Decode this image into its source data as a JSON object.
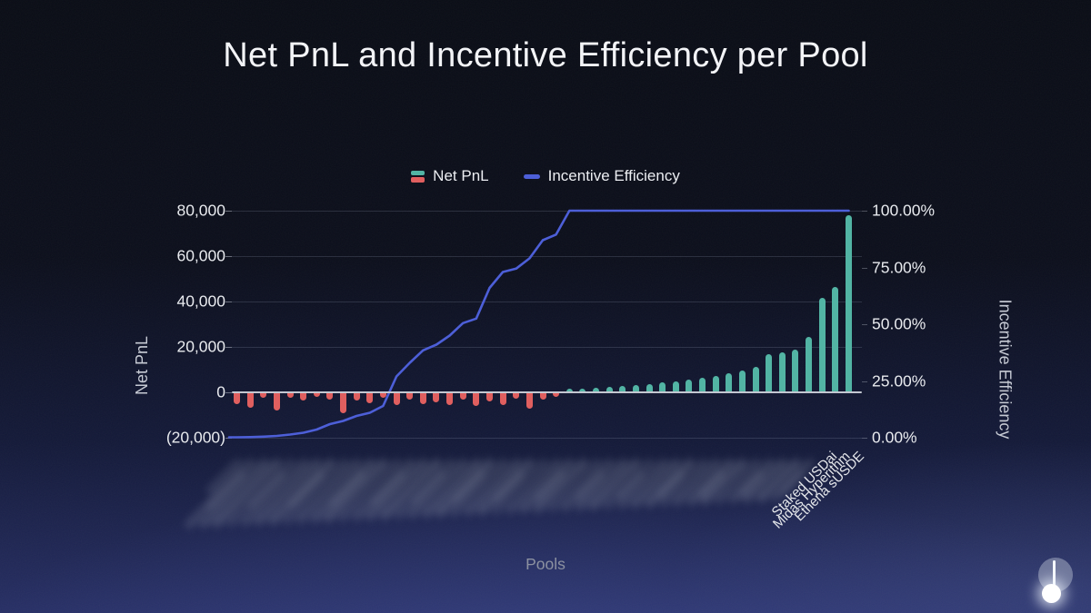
{
  "title": "Net PnL and Incentive Efficiency per Pool",
  "legend": {
    "net_pnl": "Net PnL",
    "incentive_efficiency": "Incentive Efficiency"
  },
  "axes": {
    "left": {
      "title": "Net PnL",
      "ticks": [
        {
          "value": 80000,
          "label": "80,000"
        },
        {
          "value": 60000,
          "label": "60,000"
        },
        {
          "value": 40000,
          "label": "40,000"
        },
        {
          "value": 20000,
          "label": "20,000"
        },
        {
          "value": 0,
          "label": "0"
        },
        {
          "value": -20000,
          "label": "(20,000)"
        }
      ]
    },
    "right": {
      "title": "Incentive Efficiency",
      "ticks": [
        {
          "value": 100,
          "label": "100.00%"
        },
        {
          "value": 75,
          "label": "75.00%"
        },
        {
          "value": 50,
          "label": "50.00%"
        },
        {
          "value": 25,
          "label": "25.00%"
        },
        {
          "value": 0,
          "label": "0.00%"
        }
      ]
    },
    "x": {
      "title": "Pools"
    }
  },
  "colors": {
    "bar_positive": "#52b4a4",
    "bar_negative": "#e05f5f",
    "efficiency_line": "#4d5fd8",
    "zero_line": "#c3c7d1",
    "background_top": "#090c15",
    "background_bottom": "#262e64"
  },
  "chart_data": {
    "type": "bar",
    "subtype": "combo-bar-line-dual-axis",
    "title": "Net PnL and Incentive Efficiency per Pool",
    "xlabel": "Pools",
    "ylabel_left": "Net PnL",
    "ylabel_right": "Incentive Efficiency",
    "left_ylim": [
      -20000,
      80000
    ],
    "right_ylim_percent": [
      0,
      100
    ],
    "grid": true,
    "legend_position": "top-center",
    "x_labels_note": "all category labels blurred/illegible except the final three",
    "categories": [
      "",
      "",
      "",
      "",
      "",
      "",
      "",
      "",
      "",
      "",
      "",
      "",
      "",
      "",
      "",
      "",
      "",
      "",
      "",
      "",
      "",
      "",
      "",
      "",
      "",
      "",
      "",
      "",
      "",
      "",
      "",
      "",
      "",
      "",
      "",
      "",
      "",
      "",
      "",
      "",
      "",
      "",
      "",
      "",
      "Staked USDai",
      "Midas Hyperithm",
      "Ethena sUSDE"
    ],
    "series": [
      {
        "name": "Net PnL",
        "type": "bar",
        "yaxis": "left",
        "values": [
          -5000,
          -6600,
          -2400,
          -8100,
          -2400,
          -3400,
          -2000,
          -3200,
          -9200,
          -3600,
          -4600,
          -2200,
          -5400,
          -3000,
          -5000,
          -4200,
          -5600,
          -3200,
          -6000,
          -4000,
          -5600,
          -2600,
          -7200,
          -3000,
          -1800,
          1500,
          1800,
          2100,
          2400,
          2800,
          3200,
          3700,
          4300,
          4900,
          5600,
          6400,
          7300,
          8400,
          9700,
          11200,
          16800,
          17600,
          18900,
          24500,
          41800,
          46500,
          78200
        ]
      },
      {
        "name": "Incentive Efficiency",
        "type": "line",
        "yaxis": "right",
        "values_percent": [
          0.2,
          0.3,
          0.5,
          0.8,
          1.4,
          2.2,
          3.6,
          6,
          7.4,
          9.6,
          11,
          14,
          27,
          33,
          38.5,
          41,
          45,
          50.5,
          52.5,
          66,
          73,
          74.5,
          79,
          87,
          89.5,
          100,
          100,
          100,
          100,
          100,
          100,
          100,
          100,
          100,
          100,
          100,
          100,
          100,
          100,
          100,
          100,
          100,
          100,
          100,
          100,
          100,
          100
        ]
      }
    ]
  }
}
